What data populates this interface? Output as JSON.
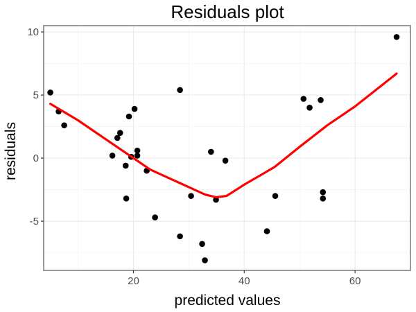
{
  "chart_data": {
    "type": "scatter",
    "title": "Residuals plot",
    "xlabel": "predicted values",
    "ylabel": "residuals",
    "xlim": [
      3.8,
      70.0
    ],
    "ylim": [
      -8.9,
      10.5
    ],
    "x_ticks": [
      20,
      40,
      60
    ],
    "x_tick_labels": [
      "20",
      "40",
      "60"
    ],
    "y_ticks": [
      10,
      5,
      0,
      -5
    ],
    "y_tick_labels": [
      "10",
      "5",
      "0",
      "-5"
    ],
    "x_minor": [
      10,
      30,
      50,
      70
    ],
    "y_minor": [
      7.5,
      2.5,
      -2.5,
      -7.5
    ],
    "grid": true,
    "legend": "none",
    "colors": {
      "points": "#000000",
      "smooth_line": "#ff0000"
    },
    "points": [
      {
        "x": 5.0,
        "y": 5.2
      },
      {
        "x": 6.5,
        "y": 3.7
      },
      {
        "x": 7.5,
        "y": 2.6
      },
      {
        "x": 16.2,
        "y": 0.2
      },
      {
        "x": 17.1,
        "y": 1.6
      },
      {
        "x": 17.6,
        "y": 2.0
      },
      {
        "x": 18.6,
        "y": -0.6
      },
      {
        "x": 18.7,
        "y": -3.2
      },
      {
        "x": 19.2,
        "y": 3.3
      },
      {
        "x": 19.6,
        "y": 0.1
      },
      {
        "x": 20.2,
        "y": 3.9
      },
      {
        "x": 20.7,
        "y": 0.6
      },
      {
        "x": 20.7,
        "y": 0.2
      },
      {
        "x": 22.4,
        "y": -1.0
      },
      {
        "x": 23.9,
        "y": -4.7
      },
      {
        "x": 28.4,
        "y": 5.4
      },
      {
        "x": 28.4,
        "y": -6.2
      },
      {
        "x": 30.4,
        "y": -3.0
      },
      {
        "x": 32.4,
        "y": -6.8
      },
      {
        "x": 32.9,
        "y": -8.1
      },
      {
        "x": 34.0,
        "y": 0.5
      },
      {
        "x": 34.9,
        "y": -3.3
      },
      {
        "x": 36.6,
        "y": -0.2
      },
      {
        "x": 44.1,
        "y": -5.8
      },
      {
        "x": 45.6,
        "y": -3.0
      },
      {
        "x": 50.7,
        "y": 4.7
      },
      {
        "x": 51.8,
        "y": 4.0
      },
      {
        "x": 53.8,
        "y": 4.6
      },
      {
        "x": 54.2,
        "y": -2.7
      },
      {
        "x": 54.2,
        "y": -3.2
      },
      {
        "x": 67.5,
        "y": 9.6
      }
    ],
    "smooth_line": [
      {
        "x": 5.0,
        "y": 4.3
      },
      {
        "x": 10.0,
        "y": 3.0
      },
      {
        "x": 15.0,
        "y": 1.5
      },
      {
        "x": 20.0,
        "y": 0.0
      },
      {
        "x": 23.0,
        "y": -0.9
      },
      {
        "x": 26.0,
        "y": -1.5
      },
      {
        "x": 30.0,
        "y": -2.3
      },
      {
        "x": 33.0,
        "y": -2.9
      },
      {
        "x": 35.0,
        "y": -3.1
      },
      {
        "x": 36.8,
        "y": -3.0
      },
      {
        "x": 40.0,
        "y": -2.1
      },
      {
        "x": 45.5,
        "y": -0.7
      },
      {
        "x": 50.0,
        "y": 0.9
      },
      {
        "x": 55.0,
        "y": 2.6
      },
      {
        "x": 60.0,
        "y": 4.1
      },
      {
        "x": 67.5,
        "y": 6.7
      }
    ]
  }
}
